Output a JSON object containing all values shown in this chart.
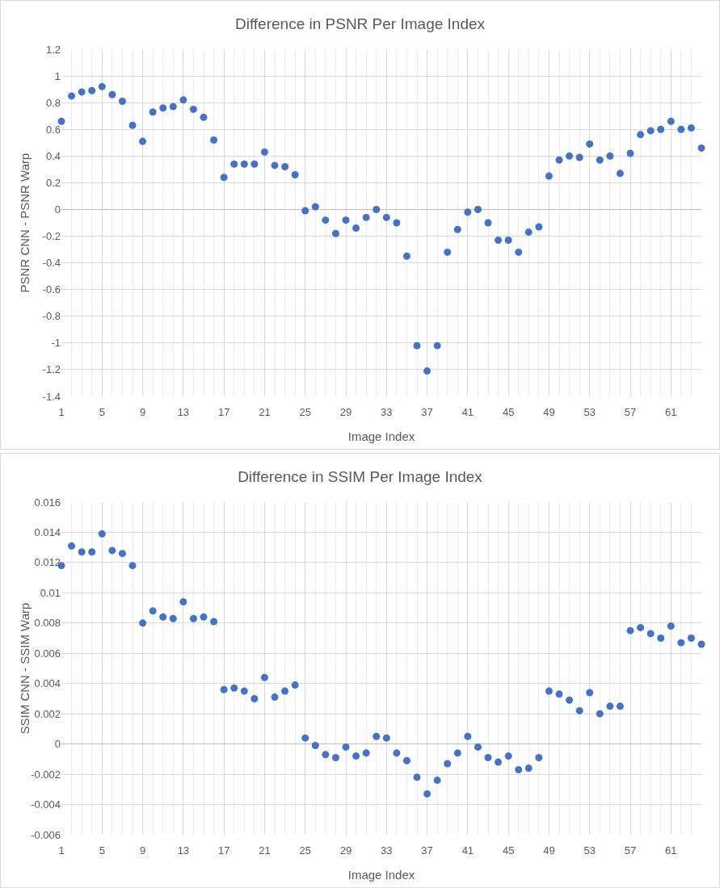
{
  "chart_data": [
    {
      "type": "scatter",
      "title": "Difference in PSNR Per Image Index",
      "xlabel": "Image Index",
      "ylabel": "PSNR CNN - PSNR Warp",
      "color": "#4472c4",
      "marker": "circle",
      "grid": true,
      "x": [
        1,
        2,
        3,
        4,
        5,
        6,
        7,
        8,
        9,
        10,
        11,
        12,
        13,
        14,
        15,
        16,
        17,
        18,
        19,
        20,
        21,
        22,
        23,
        24,
        25,
        26,
        27,
        28,
        29,
        30,
        31,
        32,
        33,
        34,
        35,
        36,
        37,
        38,
        39,
        40,
        41,
        42,
        43,
        44,
        45,
        46,
        47,
        48,
        49,
        50,
        51,
        52,
        53,
        54,
        55,
        56,
        57,
        58,
        59,
        60,
        61,
        62,
        63,
        64
      ],
      "values": [
        0.66,
        0.85,
        0.88,
        0.89,
        0.92,
        0.86,
        0.81,
        0.63,
        0.51,
        0.73,
        0.76,
        0.77,
        0.82,
        0.75,
        0.69,
        0.52,
        0.24,
        0.34,
        0.34,
        0.34,
        0.43,
        0.33,
        0.32,
        0.26,
        -0.01,
        0.02,
        -0.08,
        -0.18,
        -0.08,
        -0.14,
        -0.06,
        0.0,
        -0.06,
        -0.1,
        -0.35,
        -1.02,
        -1.21,
        -1.02,
        -0.32,
        -0.15,
        -0.02,
        0.0,
        -0.1,
        -0.23,
        -0.23,
        -0.32,
        -0.17,
        -0.13,
        0.25,
        0.37,
        0.4,
        0.39,
        0.49,
        0.37,
        0.4,
        0.27,
        0.42,
        0.56,
        0.59,
        0.6,
        0.66,
        0.6,
        0.61,
        0.46
      ],
      "xlim": [
        1,
        64
      ],
      "xticks": [
        1,
        5,
        9,
        13,
        17,
        21,
        25,
        29,
        33,
        37,
        41,
        45,
        49,
        53,
        57,
        61
      ],
      "ylim": [
        -1.4,
        1.2
      ],
      "yticks": [
        -1.4,
        -1.2,
        -1,
        -0.8,
        -0.6,
        -0.4,
        -0.2,
        0,
        0.2,
        0.4,
        0.6,
        0.8,
        1,
        1.2
      ]
    },
    {
      "type": "scatter",
      "title": "Difference in SSIM Per Image Index",
      "xlabel": "Image Index",
      "ylabel": "SSIM CNN - SSIM Warp",
      "color": "#4472c4",
      "marker": "circle",
      "grid": true,
      "x": [
        1,
        2,
        3,
        4,
        5,
        6,
        7,
        8,
        9,
        10,
        11,
        12,
        13,
        14,
        15,
        16,
        17,
        18,
        19,
        20,
        21,
        22,
        23,
        24,
        25,
        26,
        27,
        28,
        29,
        30,
        31,
        32,
        33,
        34,
        35,
        36,
        37,
        38,
        39,
        40,
        41,
        42,
        43,
        44,
        45,
        46,
        47,
        48,
        49,
        50,
        51,
        52,
        53,
        54,
        55,
        56,
        57,
        58,
        59,
        60,
        61,
        62,
        63,
        64
      ],
      "values": [
        0.0118,
        0.0131,
        0.0127,
        0.0127,
        0.0139,
        0.0128,
        0.0126,
        0.0118,
        0.008,
        0.0088,
        0.0084,
        0.0083,
        0.0094,
        0.0083,
        0.0084,
        0.0081,
        0.0036,
        0.0037,
        0.0035,
        0.003,
        0.0044,
        0.0031,
        0.0035,
        0.0039,
        0.0004,
        -0.0001,
        -0.0007,
        -0.0009,
        -0.0002,
        -0.0008,
        -0.0006,
        0.0005,
        0.0004,
        -0.0006,
        -0.0011,
        -0.0022,
        -0.0033,
        -0.0024,
        -0.0013,
        -0.0006,
        0.0005,
        -0.0002,
        -0.0009,
        -0.0012,
        -0.0008,
        -0.0017,
        -0.0016,
        -0.0009,
        0.0035,
        0.0033,
        0.0029,
        0.0022,
        0.0034,
        0.002,
        0.0025,
        0.0025,
        0.0075,
        0.0077,
        0.0073,
        0.007,
        0.0078,
        0.0067,
        0.007,
        0.0066
      ],
      "xlim": [
        1,
        64
      ],
      "xticks": [
        1,
        5,
        9,
        13,
        17,
        21,
        25,
        29,
        33,
        37,
        41,
        45,
        49,
        53,
        57,
        61
      ],
      "ylim": [
        -0.006,
        0.016
      ],
      "yticks": [
        -0.006,
        -0.004,
        -0.002,
        0,
        0.002,
        0.004,
        0.006,
        0.008,
        0.01,
        0.012,
        0.014,
        0.016
      ]
    }
  ]
}
